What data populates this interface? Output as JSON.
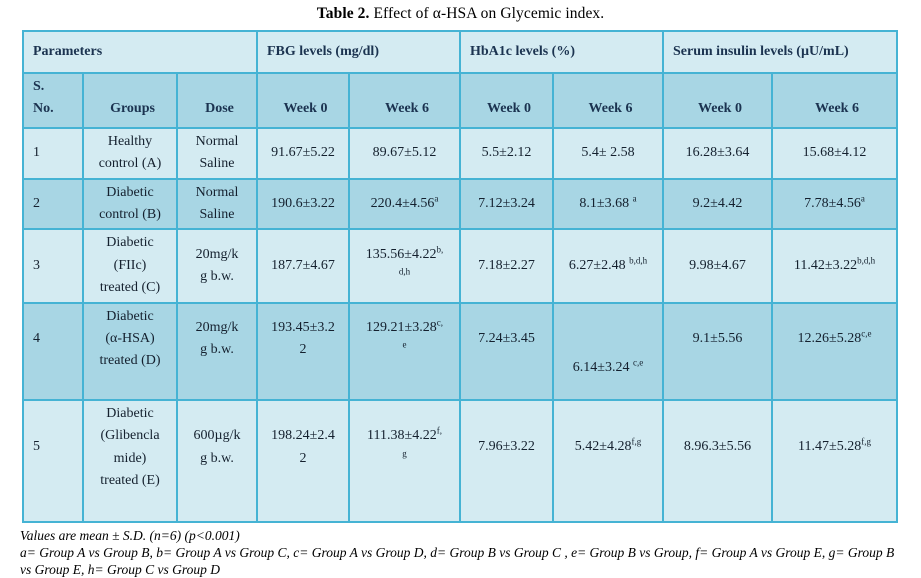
{
  "title": {
    "bold": "Table 2.",
    "rest": " Effect of α-HSA on Glycemic index."
  },
  "table": {
    "group_headers": [
      {
        "label": "Parameters",
        "colspan": 3
      },
      {
        "label": "FBG levels (mg/dl)",
        "colspan": 2
      },
      {
        "label": "HbA1c levels (%)",
        "colspan": 2
      },
      {
        "label": "Serum insulin levels (µU/mL)",
        "colspan": 2
      }
    ],
    "column_headers": [
      "S.\nNo.",
      "Groups",
      "Dose",
      "Week 0",
      "Week 6",
      "Week 0",
      "Week 6",
      "Week 0",
      "Week 6"
    ],
    "rows": [
      {
        "cells": [
          "1",
          "Healthy\ncontrol (A)",
          "Normal\nSaline",
          "91.67±5.22",
          "89.67±5.12",
          "5.5±2.12",
          "5.4± 2.58",
          "16.28±3.64",
          "15.68±4.12"
        ]
      },
      {
        "cells": [
          "2",
          "Diabetic\ncontrol (B)",
          "Normal\nSaline",
          "190.6±3.22",
          "220.4±4.56^{a}",
          "7.12±3.24",
          "8.1±3.68 ^{a}",
          "9.2±4.42",
          "7.78±4.56^{a}"
        ]
      },
      {
        "cells": [
          "3",
          "Diabetic\n(FIIc)\ntreated (C)",
          "20mg/k\ng b.w.",
          "187.7±4.67",
          "135.56±4.22^{b,}\n^{d,h}",
          "7.18±2.27",
          "6.27±2.48 ^{b,d,h}",
          "9.98±4.67",
          "11.42±3.22^{b,d,h}"
        ]
      },
      {
        "cells": [
          "4",
          "Diabetic\n(α-HSA)\ntreated (D)",
          "20mg/k\ng b.w.",
          "193.45±3.2\n2",
          "129.21±3.28^{c,}\n^{e}",
          "7.24±3.45",
          "6.14±3.24 ^{c,e}",
          "9.1±5.56",
          "12.26±5.28^{c,e}"
        ]
      },
      {
        "cells": [
          "5",
          "Diabetic\n(Glibencla\nmide)\ntreated (E)",
          "600µg/k\ng b.w.",
          "198.24±2.4\n2",
          "111.38±4.22^{f,}\n^{g}",
          "7.96±3.22",
          "5.42±4.28^{f,g}",
          "8.96.3±5.56",
          "11.47±5.28^{f,g}"
        ]
      }
    ]
  },
  "footnotes": [
    "Values are mean ± S.D. (n=6) (p<0.001)",
    "a= Group A vs Group B, b= Group A vs Group C, c= Group A vs Group D, d= Group B vs Group C , e= Group B vs Group, f= Group A vs Group E, g= Group B vs Group E, h= Group C  vs Group D"
  ],
  "colors": {
    "border": "#45b3d4",
    "row_light": "#d4ebf2",
    "row_dark": "#a8d6e4",
    "header_text": "#1b3350",
    "body_text": "#14202e"
  }
}
